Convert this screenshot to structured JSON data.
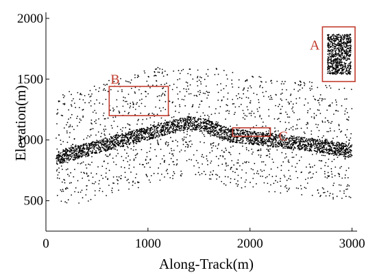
{
  "chart_data": {
    "type": "scatter",
    "xlabel": "Along-Track(m)",
    "ylabel": "Elevation(m)",
    "xlim": [
      0,
      3050
    ],
    "ylim": [
      250,
      2050
    ],
    "x_ticks": [
      0,
      1000,
      2000,
      3000
    ],
    "y_ticks": [
      500,
      1000,
      1500,
      2000
    ],
    "point_color": "#000000",
    "ground_profile": {
      "x": [
        100,
        400,
        800,
        1200,
        1400,
        1550,
        1800,
        2200,
        2600,
        3000
      ],
      "y": [
        850,
        920,
        1010,
        1100,
        1140,
        1120,
        1040,
        1000,
        960,
        910
      ]
    },
    "annotations": [
      {
        "label": "A",
        "x": [
          2710,
          3030
        ],
        "y": [
          1480,
          1930
        ],
        "color": "#c0392b"
      },
      {
        "label": "B",
        "x": [
          620,
          1200
        ],
        "y": [
          1200,
          1440
        ],
        "color": "#c0392b"
      },
      {
        "label": "C",
        "x": [
          1830,
          2200
        ],
        "y": [
          1030,
          1100
        ],
        "color": "#c0392b"
      }
    ]
  }
}
